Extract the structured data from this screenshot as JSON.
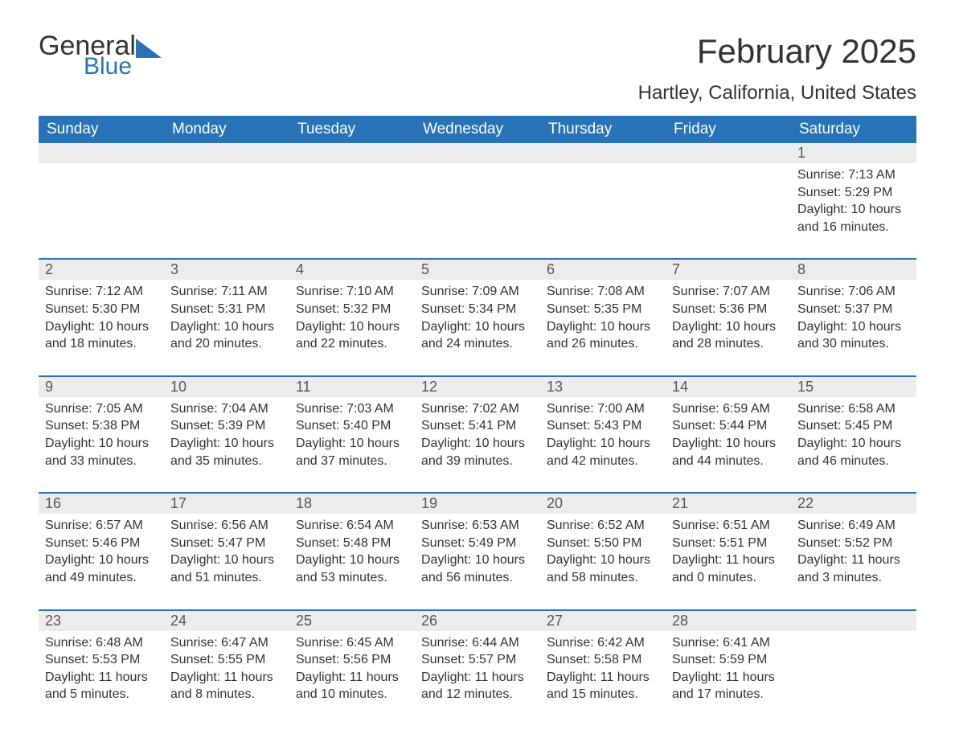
{
  "logo": {
    "general": "General",
    "blue": "Blue",
    "tri_color": "#2873b8"
  },
  "title": "February 2025",
  "location": "Hartley, California, United States",
  "colors": {
    "header_bg": "#2873b8",
    "header_text": "#ffffff",
    "daynum_bg": "#ececec",
    "border": "#2873b8",
    "body_text": "#333333"
  },
  "weekdays": [
    "Sunday",
    "Monday",
    "Tuesday",
    "Wednesday",
    "Thursday",
    "Friday",
    "Saturday"
  ],
  "weeks": [
    [
      null,
      null,
      null,
      null,
      null,
      null,
      {
        "n": "1",
        "sr": "Sunrise: 7:13 AM",
        "ss": "Sunset: 5:29 PM",
        "d1": "Daylight: 10 hours",
        "d2": "and 16 minutes."
      }
    ],
    [
      {
        "n": "2",
        "sr": "Sunrise: 7:12 AM",
        "ss": "Sunset: 5:30 PM",
        "d1": "Daylight: 10 hours",
        "d2": "and 18 minutes."
      },
      {
        "n": "3",
        "sr": "Sunrise: 7:11 AM",
        "ss": "Sunset: 5:31 PM",
        "d1": "Daylight: 10 hours",
        "d2": "and 20 minutes."
      },
      {
        "n": "4",
        "sr": "Sunrise: 7:10 AM",
        "ss": "Sunset: 5:32 PM",
        "d1": "Daylight: 10 hours",
        "d2": "and 22 minutes."
      },
      {
        "n": "5",
        "sr": "Sunrise: 7:09 AM",
        "ss": "Sunset: 5:34 PM",
        "d1": "Daylight: 10 hours",
        "d2": "and 24 minutes."
      },
      {
        "n": "6",
        "sr": "Sunrise: 7:08 AM",
        "ss": "Sunset: 5:35 PM",
        "d1": "Daylight: 10 hours",
        "d2": "and 26 minutes."
      },
      {
        "n": "7",
        "sr": "Sunrise: 7:07 AM",
        "ss": "Sunset: 5:36 PM",
        "d1": "Daylight: 10 hours",
        "d2": "and 28 minutes."
      },
      {
        "n": "8",
        "sr": "Sunrise: 7:06 AM",
        "ss": "Sunset: 5:37 PM",
        "d1": "Daylight: 10 hours",
        "d2": "and 30 minutes."
      }
    ],
    [
      {
        "n": "9",
        "sr": "Sunrise: 7:05 AM",
        "ss": "Sunset: 5:38 PM",
        "d1": "Daylight: 10 hours",
        "d2": "and 33 minutes."
      },
      {
        "n": "10",
        "sr": "Sunrise: 7:04 AM",
        "ss": "Sunset: 5:39 PM",
        "d1": "Daylight: 10 hours",
        "d2": "and 35 minutes."
      },
      {
        "n": "11",
        "sr": "Sunrise: 7:03 AM",
        "ss": "Sunset: 5:40 PM",
        "d1": "Daylight: 10 hours",
        "d2": "and 37 minutes."
      },
      {
        "n": "12",
        "sr": "Sunrise: 7:02 AM",
        "ss": "Sunset: 5:41 PM",
        "d1": "Daylight: 10 hours",
        "d2": "and 39 minutes."
      },
      {
        "n": "13",
        "sr": "Sunrise: 7:00 AM",
        "ss": "Sunset: 5:43 PM",
        "d1": "Daylight: 10 hours",
        "d2": "and 42 minutes."
      },
      {
        "n": "14",
        "sr": "Sunrise: 6:59 AM",
        "ss": "Sunset: 5:44 PM",
        "d1": "Daylight: 10 hours",
        "d2": "and 44 minutes."
      },
      {
        "n": "15",
        "sr": "Sunrise: 6:58 AM",
        "ss": "Sunset: 5:45 PM",
        "d1": "Daylight: 10 hours",
        "d2": "and 46 minutes."
      }
    ],
    [
      {
        "n": "16",
        "sr": "Sunrise: 6:57 AM",
        "ss": "Sunset: 5:46 PM",
        "d1": "Daylight: 10 hours",
        "d2": "and 49 minutes."
      },
      {
        "n": "17",
        "sr": "Sunrise: 6:56 AM",
        "ss": "Sunset: 5:47 PM",
        "d1": "Daylight: 10 hours",
        "d2": "and 51 minutes."
      },
      {
        "n": "18",
        "sr": "Sunrise: 6:54 AM",
        "ss": "Sunset: 5:48 PM",
        "d1": "Daylight: 10 hours",
        "d2": "and 53 minutes."
      },
      {
        "n": "19",
        "sr": "Sunrise: 6:53 AM",
        "ss": "Sunset: 5:49 PM",
        "d1": "Daylight: 10 hours",
        "d2": "and 56 minutes."
      },
      {
        "n": "20",
        "sr": "Sunrise: 6:52 AM",
        "ss": "Sunset: 5:50 PM",
        "d1": "Daylight: 10 hours",
        "d2": "and 58 minutes."
      },
      {
        "n": "21",
        "sr": "Sunrise: 6:51 AM",
        "ss": "Sunset: 5:51 PM",
        "d1": "Daylight: 11 hours",
        "d2": "and 0 minutes."
      },
      {
        "n": "22",
        "sr": "Sunrise: 6:49 AM",
        "ss": "Sunset: 5:52 PM",
        "d1": "Daylight: 11 hours",
        "d2": "and 3 minutes."
      }
    ],
    [
      {
        "n": "23",
        "sr": "Sunrise: 6:48 AM",
        "ss": "Sunset: 5:53 PM",
        "d1": "Daylight: 11 hours",
        "d2": "and 5 minutes."
      },
      {
        "n": "24",
        "sr": "Sunrise: 6:47 AM",
        "ss": "Sunset: 5:55 PM",
        "d1": "Daylight: 11 hours",
        "d2": "and 8 minutes."
      },
      {
        "n": "25",
        "sr": "Sunrise: 6:45 AM",
        "ss": "Sunset: 5:56 PM",
        "d1": "Daylight: 11 hours",
        "d2": "and 10 minutes."
      },
      {
        "n": "26",
        "sr": "Sunrise: 6:44 AM",
        "ss": "Sunset: 5:57 PM",
        "d1": "Daylight: 11 hours",
        "d2": "and 12 minutes."
      },
      {
        "n": "27",
        "sr": "Sunrise: 6:42 AM",
        "ss": "Sunset: 5:58 PM",
        "d1": "Daylight: 11 hours",
        "d2": "and 15 minutes."
      },
      {
        "n": "28",
        "sr": "Sunrise: 6:41 AM",
        "ss": "Sunset: 5:59 PM",
        "d1": "Daylight: 11 hours",
        "d2": "and 17 minutes."
      },
      null
    ]
  ]
}
